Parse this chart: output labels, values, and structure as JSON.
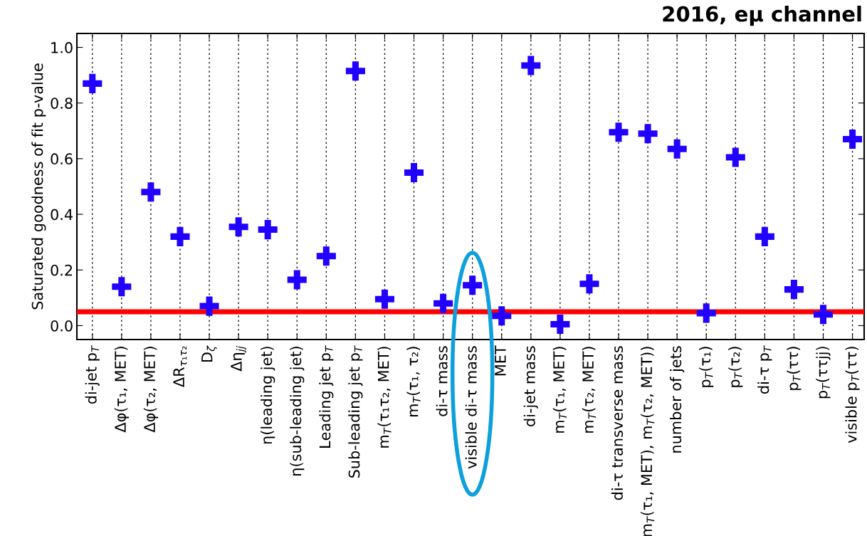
{
  "chart_data": {
    "type": "scatter",
    "title": "2016, eμ channel",
    "ylabel": "Saturated goodness of fit p-value",
    "categories": [
      "di-jet p$_{T}$",
      "Δφ(τ₁, MET)",
      "Δφ(τ₂, MET)",
      "ΔR$_{τ₁τ₂}$",
      "D$_{ζ}$",
      "Δη$_{jj}$",
      "η(leading jet)",
      "η(sub-leading jet)",
      "Leading jet p$_{T}$",
      "Sub-leading jet p$_{T}$",
      "m$_{T}$(τ₁τ₂, MET)",
      "m$_{T}$(τ₁, τ₂)",
      "di-τ mass",
      "visible di-τ mass",
      "MET",
      "di-jet mass",
      "m$_{T}$(τ₁, MET)",
      "m$_{T}$(τ₂, MET)",
      "di-τ transverse mass",
      "m$_{T}$(τ₁, MET), m$_{T}$(τ₂, MET))",
      "number of jets",
      "p$_{T}$(τ₁)",
      "p$_{T}$(τ₂)",
      "di-τ p$_{T}$",
      "p$_{T}$(ττ)",
      "p$_{T}$(ττjj)",
      "visible p$_{T}$(ττ)"
    ],
    "series": [
      {
        "color": "#2200ff",
        "values": [
          0.87,
          0.14,
          0.48,
          0.32,
          0.07,
          0.355,
          0.345,
          0.165,
          0.25,
          0.915,
          0.095,
          0.55,
          0.08,
          0.145,
          0.035,
          0.935,
          0.005,
          0.15,
          0.695,
          0.69,
          0.635,
          0.045,
          0.605,
          0.32,
          0.13,
          0.04,
          0.67
        ]
      }
    ],
    "ylim": [
      -0.05,
      1.05
    ],
    "yticks": [
      {
        "value": 0,
        "label": "0.0"
      },
      {
        "value": 0.2,
        "label": "0.2"
      },
      {
        "value": 0.4,
        "label": "0.4"
      },
      {
        "value": 0.6,
        "label": "0.6"
      },
      {
        "value": 0.8,
        "label": "0.8"
      },
      {
        "value": 1,
        "label": "1.0"
      }
    ],
    "ref_lines": [
      {
        "axis": "y",
        "value": 0.05,
        "color": "#ff0000"
      }
    ],
    "grid": "x",
    "marker": "cross",
    "legend": false
  }
}
